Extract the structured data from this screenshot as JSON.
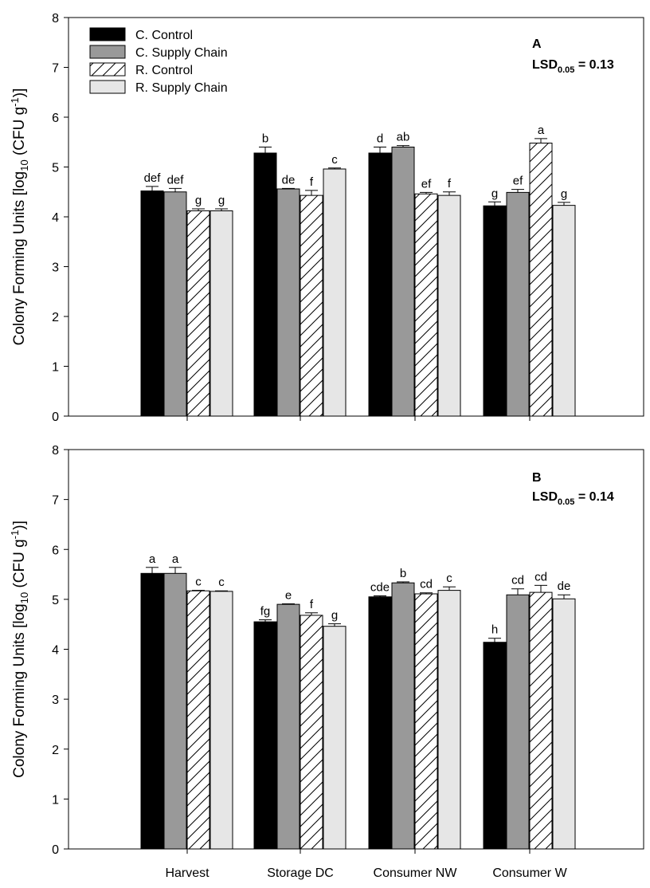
{
  "chart_data": {
    "type": "bar",
    "categories": [
      "Harvest",
      "Storage DC",
      "Consumer NW",
      "Consumer W"
    ],
    "legend": [
      "C. Control",
      "C. Supply Chain",
      "R. Control",
      "R. Supply Chain"
    ],
    "legend_position": "top-left",
    "colors": {
      "C. Control": "#000000",
      "C. Supply Chain": "#999999",
      "R. Control": "#ffffff",
      "R. Supply Chain": "#e6e6e6"
    },
    "patterns": {
      "C. Control": "solid",
      "C. Supply Chain": "solid",
      "R. Control": "diagonal-hatch",
      "R. Supply Chain": "solid"
    },
    "ylim": [
      0,
      8
    ],
    "yticks": [
      "0",
      "1",
      "2",
      "3",
      "4",
      "5",
      "6",
      "7",
      "8"
    ],
    "grid": false,
    "panels": [
      {
        "letter": "A",
        "lsd_prefix": "LSD",
        "lsd_sub": "0.05",
        "lsd_value": " = 0.13",
        "ylabel_main": "Colony Forming Units [log",
        "ylabel_sub": "10",
        "ylabel_mid": " (CFU g",
        "ylabel_sup": "-1",
        "ylabel_end": ")]",
        "series": [
          {
            "name": "C. Control",
            "values": [
              4.52,
              5.28,
              5.28,
              4.22
            ],
            "errors": [
              0.09,
              0.12,
              0.12,
              0.08
            ],
            "letters": [
              "def",
              "b",
              "d",
              "g"
            ]
          },
          {
            "name": "C. Supply Chain",
            "values": [
              4.5,
              4.56,
              5.4,
              4.49
            ],
            "errors": [
              0.07,
              0.01,
              0.03,
              0.06
            ],
            "letters": [
              "def",
              "de",
              "ab",
              "ef"
            ]
          },
          {
            "name": "R. Control",
            "values": [
              4.12,
              4.43,
              4.46,
              5.48
            ],
            "errors": [
              0.04,
              0.1,
              0.03,
              0.09
            ],
            "letters": [
              "g",
              "f",
              "ef",
              "a"
            ]
          },
          {
            "name": "R. Supply Chain",
            "values": [
              4.12,
              4.96,
              4.43,
              4.23
            ],
            "errors": [
              0.04,
              0.02,
              0.07,
              0.06
            ],
            "letters": [
              "g",
              "c",
              "f",
              "g"
            ]
          }
        ]
      },
      {
        "letter": "B",
        "lsd_prefix": "LSD",
        "lsd_sub": "0.05",
        "lsd_value": " = 0.14",
        "ylabel_main": "Colony Forming Units [log",
        "ylabel_sub": "10",
        "ylabel_mid": " (CFU g",
        "ylabel_sup": "-1",
        "ylabel_end": ")]",
        "series": [
          {
            "name": "C. Control",
            "values": [
              5.52,
              4.55,
              5.05,
              4.14
            ],
            "errors": [
              0.12,
              0.04,
              0.02,
              0.08
            ],
            "letters": [
              "a",
              "fg",
              "cde",
              "h"
            ]
          },
          {
            "name": "C. Supply Chain",
            "values": [
              5.52,
              4.9,
              5.33,
              5.09
            ],
            "errors": [
              0.12,
              0.01,
              0.02,
              0.12
            ],
            "letters": [
              "a",
              "e",
              "b",
              "cd"
            ]
          },
          {
            "name": "R. Control",
            "values": [
              5.17,
              4.68,
              5.11,
              5.14
            ],
            "errors": [
              0.01,
              0.05,
              0.02,
              0.14
            ],
            "letters": [
              "c",
              "f",
              "cd",
              "cd"
            ]
          },
          {
            "name": "R. Supply Chain",
            "values": [
              5.16,
              4.46,
              5.18,
              5.01
            ],
            "errors": [
              0.01,
              0.05,
              0.07,
              0.08
            ],
            "letters": [
              "c",
              "g",
              "c",
              "de"
            ]
          }
        ]
      }
    ]
  }
}
